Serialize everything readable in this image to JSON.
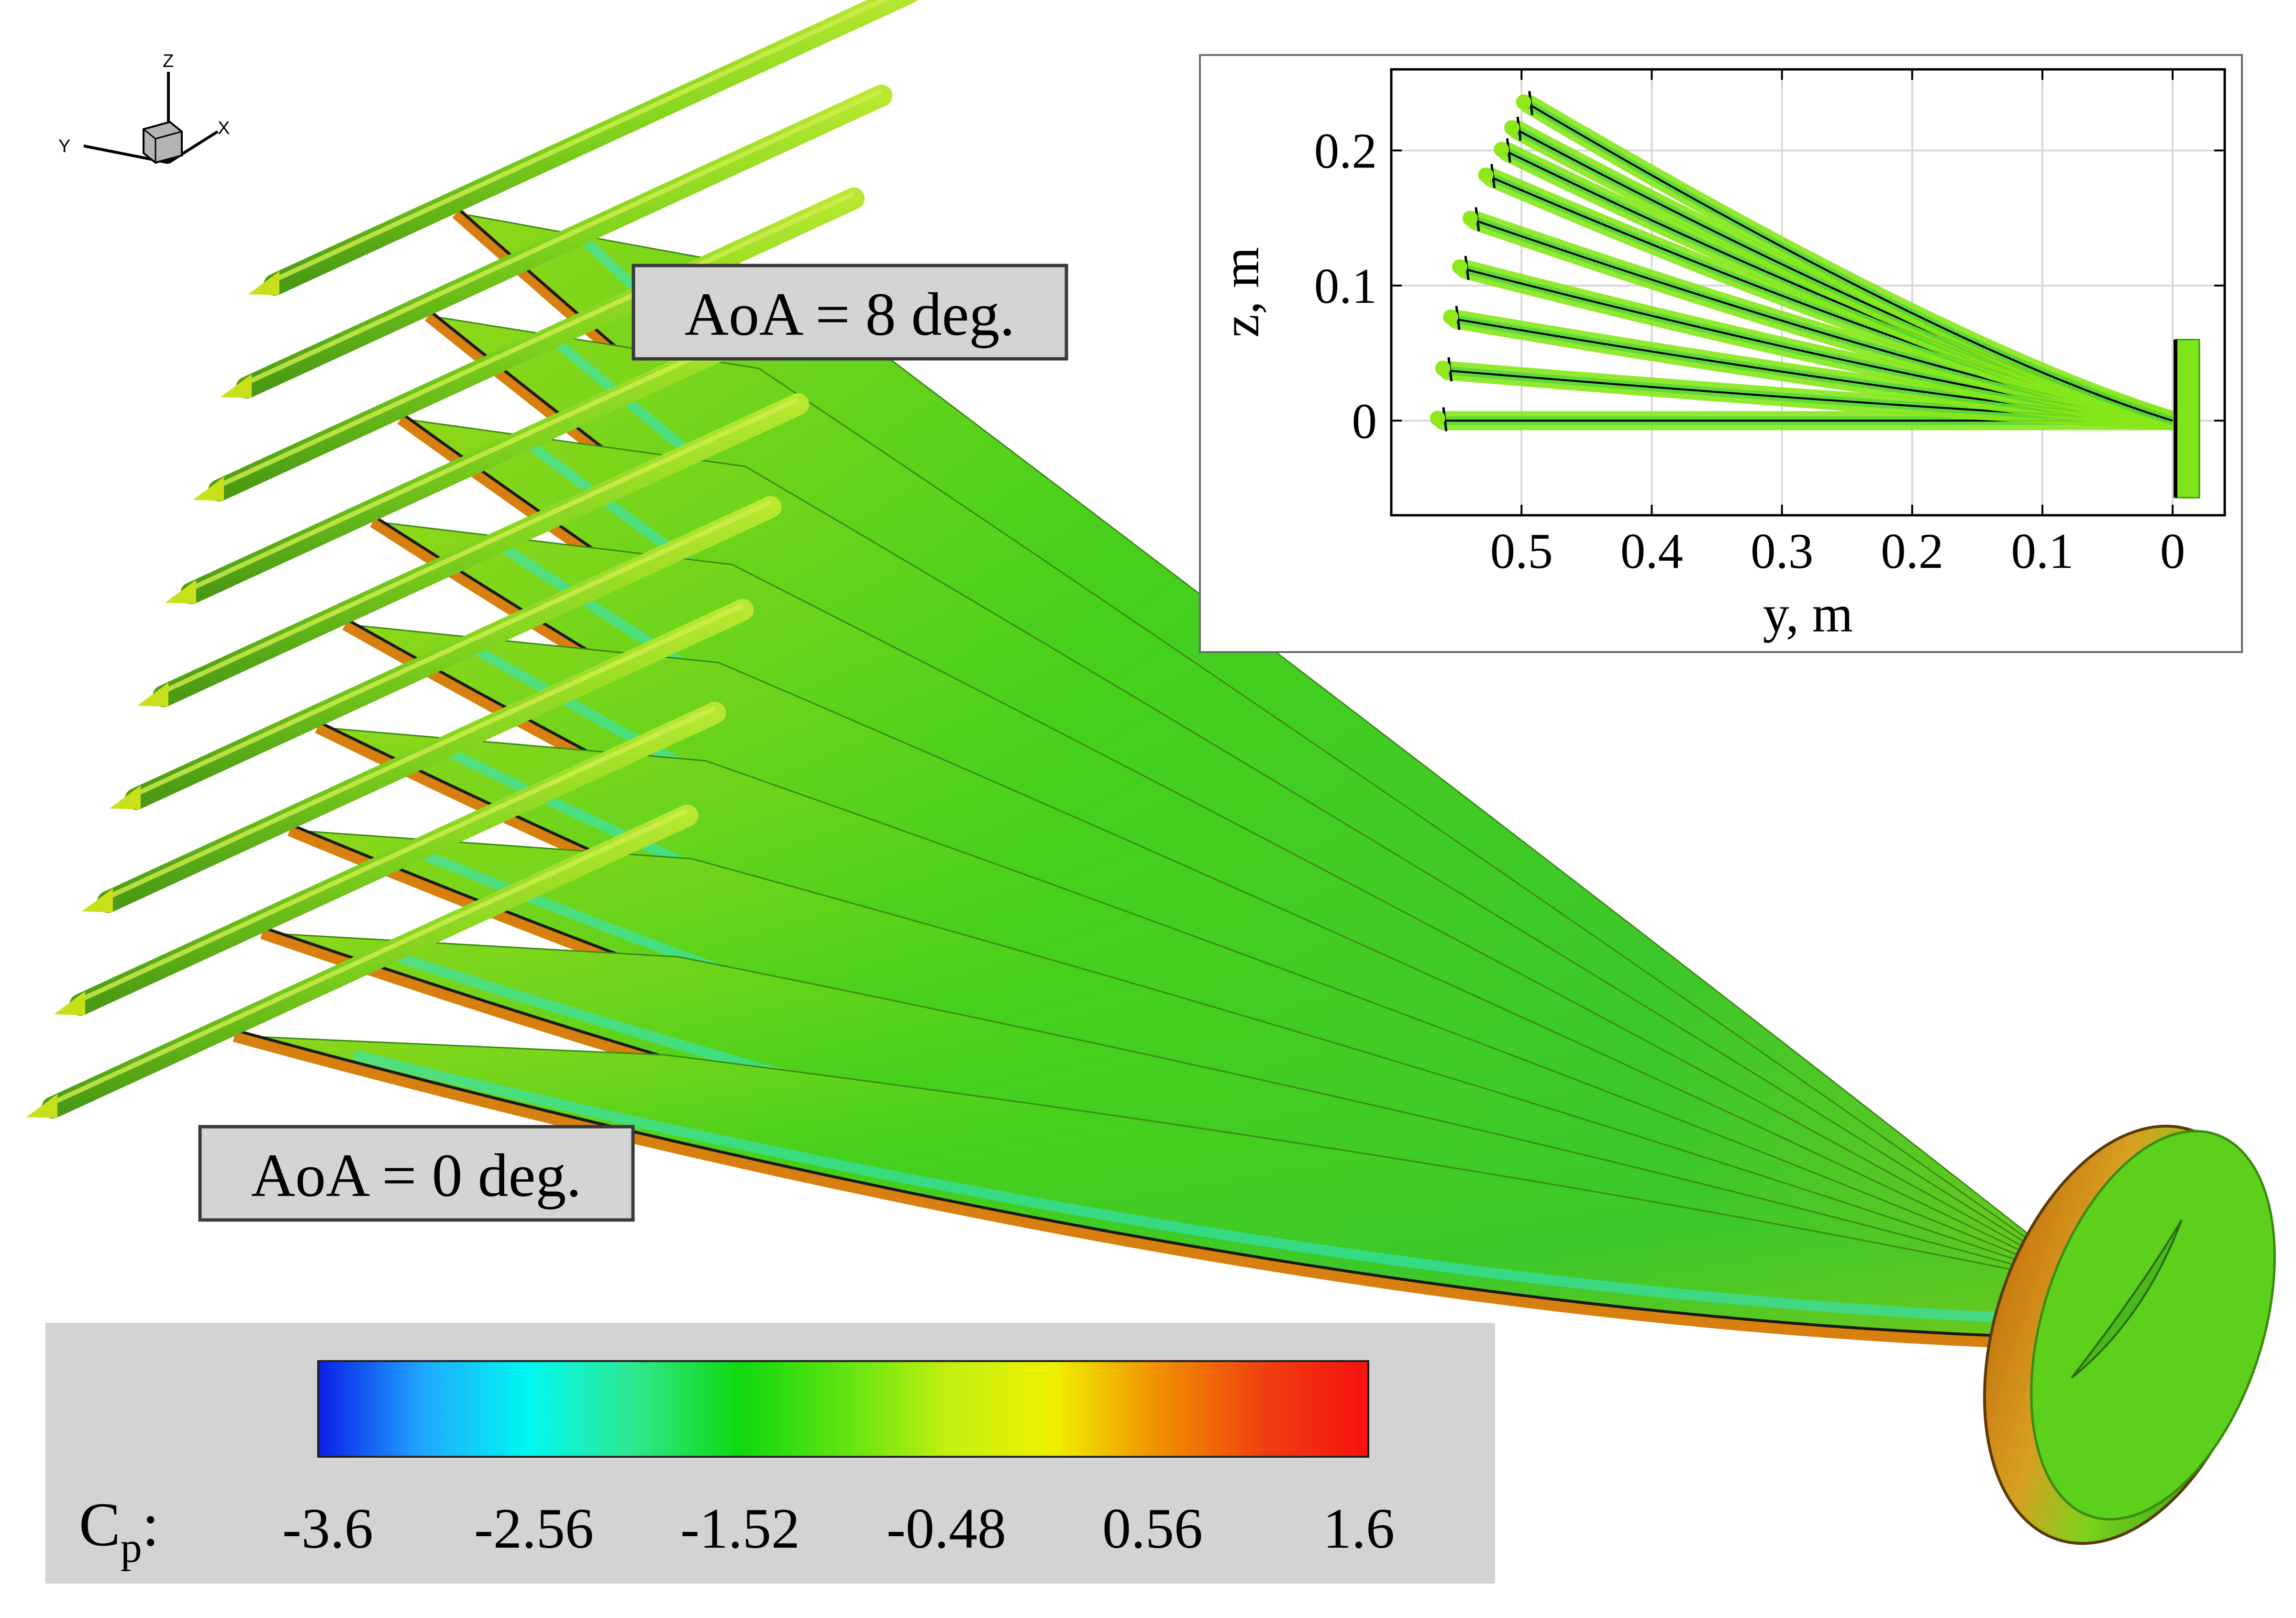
{
  "axis_triad": {
    "z": "Z",
    "y": "Y",
    "x": "X"
  },
  "labels": {
    "aoa_high": "AoA = 8 deg.",
    "aoa_low": "AoA = 0 deg."
  },
  "colorbar": {
    "variable_main": "C",
    "variable_sub": "p",
    "colon": ":",
    "ticks": [
      "-3.6",
      "-2.56",
      "-1.52",
      "-0.48",
      "0.56",
      "1.6"
    ],
    "colors": [
      "#0a1ee6",
      "#1fa8ff",
      "#00f8f0",
      "#2ee890",
      "#10d810",
      "#5ee410",
      "#c2f010",
      "#f0f000",
      "#f09000",
      "#f04010",
      "#f81010"
    ]
  },
  "inset": {
    "xlabel": "y, m",
    "ylabel": "z, m",
    "x_ticks": [
      "0.5",
      "0.4",
      "0.3",
      "0.2",
      "0.1",
      "0"
    ],
    "y_ticks": [
      "0.2",
      "0.1",
      "0"
    ],
    "x_range": [
      0.6,
      -0.04
    ],
    "y_range": [
      -0.07,
      0.26
    ],
    "x_tick_values": [
      0.5,
      0.4,
      0.3,
      0.2,
      0.1,
      0
    ],
    "y_tick_values": [
      0.2,
      0.1,
      0
    ],
    "grid": true,
    "tip_points": [
      [
        0.56,
        0.0
      ],
      [
        0.556,
        0.037
      ],
      [
        0.55,
        0.075
      ],
      [
        0.543,
        0.112
      ],
      [
        0.535,
        0.148
      ],
      [
        0.523,
        0.18
      ],
      [
        0.511,
        0.199
      ],
      [
        0.503,
        0.215
      ],
      [
        0.494,
        0.234
      ]
    ],
    "root_point": [
      0.0,
      0.0
    ]
  },
  "colors": {
    "wing_green": "#4fd01a",
    "stripe_cyan": "#2fe8d0",
    "leading_edge_orange": "#d8800f",
    "label_box_fill": "#d4d4d4",
    "colorbar_panel": "#d3d3d3"
  }
}
